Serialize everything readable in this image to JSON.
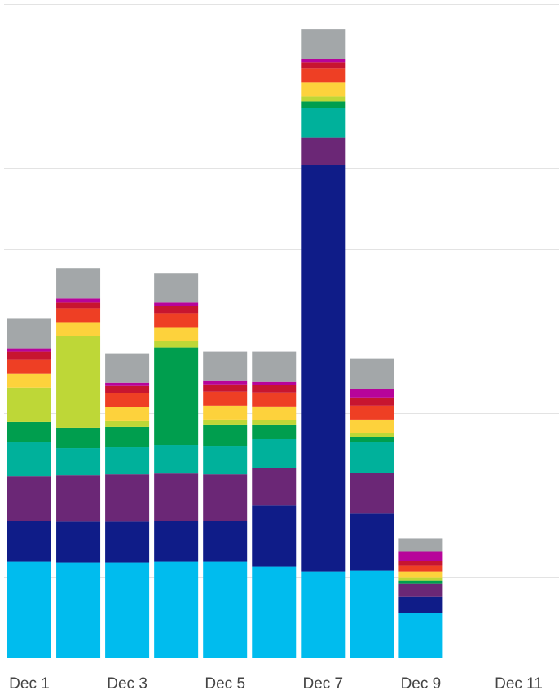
{
  "chart_data": {
    "type": "bar",
    "stacked": true,
    "title": "",
    "xlabel": "",
    "ylabel": "",
    "categories": [
      "Dec 1",
      "Dec 2",
      "Dec 3",
      "Dec 4",
      "Dec 5",
      "Dec 6",
      "Dec 7",
      "Dec 8",
      "Dec 9",
      "Dec 10",
      "Dec 11"
    ],
    "x_tick_labels": [
      "Dec 1",
      "Dec 3",
      "Dec 5",
      "Dec 7",
      "Dec 9",
      "Dec 11"
    ],
    "ylim": [
      0,
      8
    ],
    "grid": true,
    "y_tick_labels_shown": false,
    "legend": "none",
    "series": [
      {
        "color": "#00bcee",
        "values": [
          1.18,
          1.17,
          1.17,
          1.18,
          1.18,
          1.12,
          1.06,
          1.07,
          0.55,
          0,
          0
        ]
      },
      {
        "color": "#0f1c88",
        "values": [
          0.5,
          0.5,
          0.5,
          0.5,
          0.5,
          0.75,
          4.97,
          0.7,
          0.2,
          0,
          0
        ]
      },
      {
        "color": "#6b2776",
        "values": [
          0.55,
          0.57,
          0.58,
          0.58,
          0.57,
          0.46,
          0.34,
          0.5,
          0.16,
          0,
          0
        ]
      },
      {
        "color": "#00b19b",
        "values": [
          0.41,
          0.33,
          0.33,
          0.35,
          0.34,
          0.35,
          0.36,
          0.37,
          0,
          0,
          0
        ]
      },
      {
        "color": "#009e4e",
        "values": [
          0.25,
          0.25,
          0.25,
          1.19,
          0.26,
          0.17,
          0.08,
          0.06,
          0.04,
          0,
          0
        ]
      },
      {
        "color": "#bed737",
        "values": [
          0.42,
          1.12,
          0.07,
          0.08,
          0.07,
          0.06,
          0.06,
          0.05,
          0.04,
          0,
          0
        ]
      },
      {
        "color": "#fdd23c",
        "values": [
          0.17,
          0.17,
          0.17,
          0.17,
          0.17,
          0.17,
          0.17,
          0.17,
          0.07,
          0,
          0
        ]
      },
      {
        "color": "#ee3f24",
        "values": [
          0.17,
          0.17,
          0.17,
          0.17,
          0.17,
          0.17,
          0.17,
          0.17,
          0.07,
          0,
          0
        ]
      },
      {
        "color": "#c71530",
        "values": [
          0.1,
          0.07,
          0.09,
          0.09,
          0.09,
          0.09,
          0.08,
          0.1,
          0.06,
          0,
          0
        ]
      },
      {
        "color": "#b7049a",
        "values": [
          0.04,
          0.05,
          0.04,
          0.04,
          0.04,
          0.04,
          0.04,
          0.1,
          0.12,
          0,
          0
        ]
      },
      {
        "color": "#a3a7a9",
        "values": [
          0.37,
          0.37,
          0.36,
          0.36,
          0.36,
          0.37,
          0.36,
          0.37,
          0.16,
          0,
          0
        ]
      }
    ]
  }
}
